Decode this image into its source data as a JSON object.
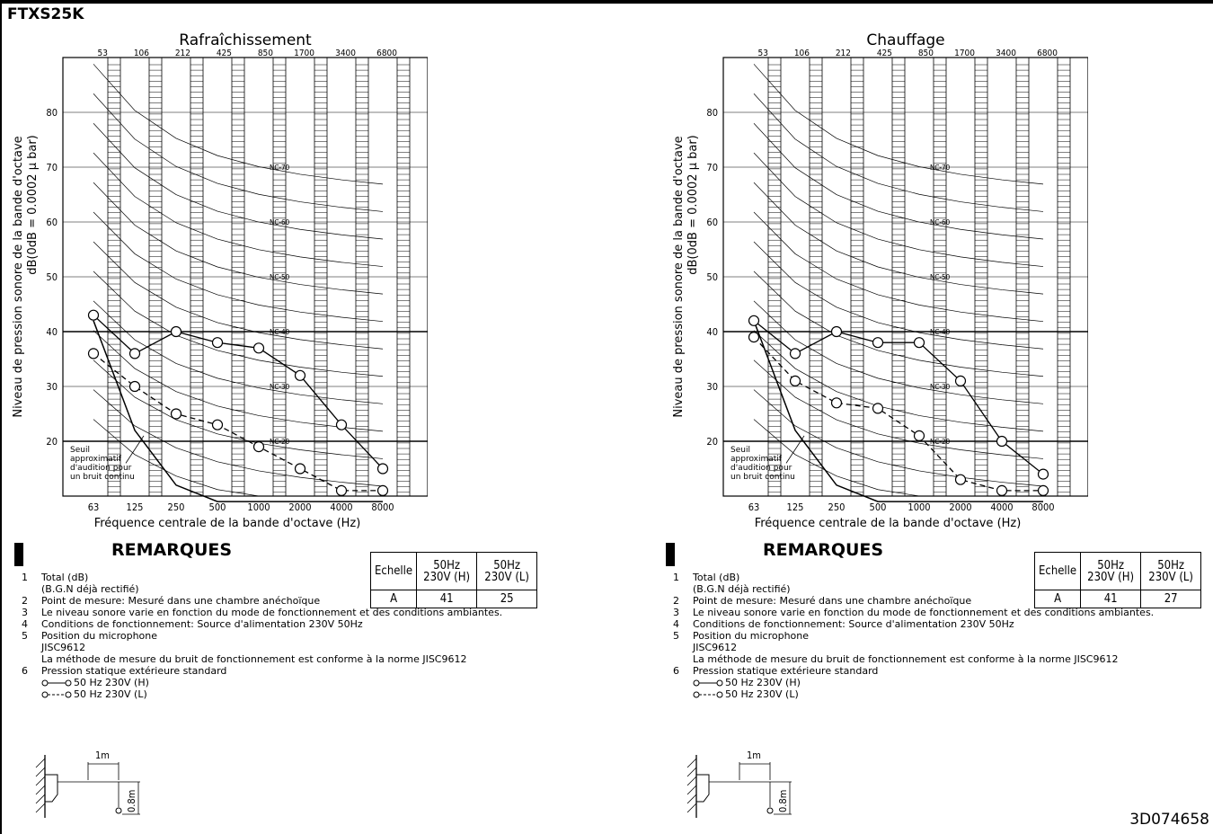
{
  "model": "FTXS25K",
  "doc_code": "3D074658",
  "ylabel": "Niveau de pression sonore de la bande d'octave",
  "ylabel2": "dB(0dB = 0.0002 μ bar)",
  "xlabel": "Fréquence centrale de la bande d'octave (Hz)",
  "threshold_label": [
    "Seuil",
    "approximatif",
    "d'audition pour",
    "un bruit continu"
  ],
  "remarks": {
    "title": "REMARQUES",
    "notes": [
      {
        "n": "1",
        "text": "Total (dB)",
        "sub": "(B.G.N déjà rectifié)"
      },
      {
        "n": "2",
        "text": "Point de mesure: Mesuré dans une chambre anéchoïque"
      },
      {
        "n": "3",
        "text": "Le niveau sonore varie en fonction du mode de fonctionnement et des conditions ambiantes."
      },
      {
        "n": "4",
        "text": "Conditions de fonctionnement: Source d'alimentation 230V 50Hz"
      },
      {
        "n": "5",
        "text": "Position du microphone",
        "sub": "JISC9612",
        "sub2": "La méthode de mesure du bruit de fonctionnement est conforme à la norme JISC9612"
      },
      {
        "n": "6",
        "text": "Pression statique extérieure standard"
      }
    ],
    "legend_h": "50 Hz  230V (H)",
    "legend_l": "50 Hz  230V (L)",
    "dist_label": "1m",
    "height_label": "0.8m"
  },
  "table_headers": [
    "Echelle",
    "50Hz 230V (H)",
    "50Hz 230V (L)"
  ],
  "chart_data": [
    {
      "type": "line",
      "title": "Rafraîchissement",
      "x": [
        63,
        125,
        250,
        500,
        1000,
        2000,
        4000,
        8000
      ],
      "x_top": [
        53,
        106,
        212,
        425,
        850,
        1700,
        3400,
        6800
      ],
      "ylim": [
        10,
        90
      ],
      "yticks": [
        20,
        30,
        40,
        50,
        60,
        70,
        80
      ],
      "nc_labels": [
        "NC-70",
        "NC-60",
        "NC-50",
        "NC-40",
        "NC-30",
        "NC-20"
      ],
      "series": [
        {
          "name": "50 Hz  230V (H)",
          "values": [
            43,
            36,
            40,
            38,
            37,
            32,
            23,
            15
          ]
        },
        {
          "name": "50 Hz  230V (L)",
          "values": [
            36,
            30,
            25,
            23,
            19,
            15,
            11,
            11
          ]
        }
      ],
      "table": {
        "scale": "A",
        "h": "41",
        "l": "25"
      }
    },
    {
      "type": "line",
      "title": "Chauffage",
      "x": [
        63,
        125,
        250,
        500,
        1000,
        2000,
        4000,
        8000
      ],
      "x_top": [
        53,
        106,
        212,
        425,
        850,
        1700,
        3400,
        6800
      ],
      "ylim": [
        10,
        90
      ],
      "yticks": [
        20,
        30,
        40,
        50,
        60,
        70,
        80
      ],
      "nc_labels": [
        "NC-70",
        "NC-60",
        "NC-50",
        "NC-40",
        "NC-30",
        "NC-20"
      ],
      "series": [
        {
          "name": "50 Hz  230V (H)",
          "values": [
            42,
            36,
            40,
            38,
            38,
            31,
            20,
            14
          ]
        },
        {
          "name": "50 Hz  230V (L)",
          "values": [
            39,
            31,
            27,
            26,
            21,
            13,
            11,
            11
          ]
        }
      ],
      "table": {
        "scale": "A",
        "h": "41",
        "l": "27"
      }
    }
  ]
}
